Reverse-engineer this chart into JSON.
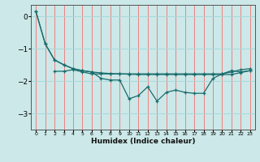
{
  "title": "",
  "xlabel": "Humidex (Indice chaleur)",
  "background_color": "#cce8e8",
  "grid_color_v": "#f08080",
  "grid_color_h": "#aad8d8",
  "line_color": "#1a6b6b",
  "xlim": [
    -0.5,
    23.5
  ],
  "ylim": [
    -3.5,
    0.35
  ],
  "yticks": [
    0,
    -1,
    -2,
    -3
  ],
  "xticks": [
    0,
    1,
    2,
    3,
    4,
    5,
    6,
    7,
    8,
    9,
    10,
    11,
    12,
    13,
    14,
    15,
    16,
    17,
    18,
    19,
    20,
    21,
    22,
    23
  ],
  "line1_x": [
    0,
    1,
    2,
    3,
    4,
    5,
    6,
    7,
    8,
    9,
    10,
    11,
    12,
    13,
    14,
    15,
    16,
    17,
    18,
    19,
    20,
    21,
    22,
    23
  ],
  "line1_y": [
    0.15,
    -0.85,
    -1.35,
    -1.5,
    -1.62,
    -1.68,
    -1.72,
    -1.75,
    -1.77,
    -1.78,
    -1.79,
    -1.8,
    -1.8,
    -1.8,
    -1.8,
    -1.8,
    -1.8,
    -1.8,
    -1.8,
    -1.8,
    -1.8,
    -1.8,
    -1.74,
    -1.68
  ],
  "line2_x": [
    0,
    1,
    2,
    3,
    4,
    5,
    6,
    7,
    8,
    9,
    10,
    11,
    12,
    13,
    14,
    15,
    16,
    17,
    18,
    19,
    20,
    21,
    22,
    23
  ],
  "line2_y": [
    0.15,
    -0.85,
    -1.35,
    -1.5,
    -1.62,
    -1.68,
    -1.72,
    -1.92,
    -1.97,
    -1.97,
    -2.55,
    -2.45,
    -2.18,
    -2.62,
    -2.35,
    -2.28,
    -2.35,
    -2.38,
    -2.38,
    -1.92,
    -1.78,
    -1.68,
    -1.72,
    -1.68
  ],
  "line3_x": [
    2,
    3,
    4,
    5,
    6,
    7,
    8,
    9,
    10,
    11,
    12,
    13,
    14,
    15,
    16,
    17,
    18,
    19,
    20,
    21,
    22,
    23
  ],
  "line3_y": [
    -1.7,
    -1.7,
    -1.65,
    -1.72,
    -1.78,
    -1.78,
    -1.78,
    -1.78,
    -1.78,
    -1.78,
    -1.78,
    -1.78,
    -1.78,
    -1.78,
    -1.78,
    -1.78,
    -1.78,
    -1.78,
    -1.78,
    -1.72,
    -1.65,
    -1.62
  ]
}
